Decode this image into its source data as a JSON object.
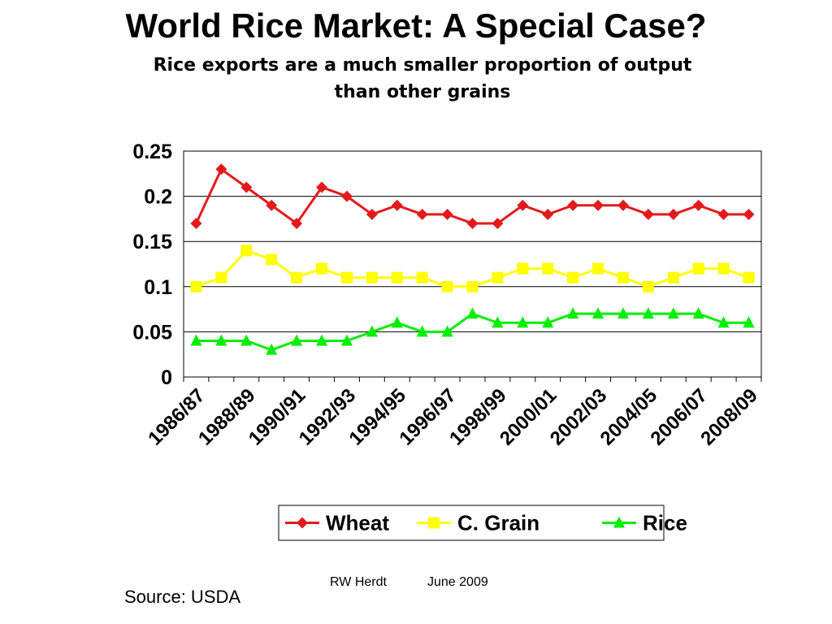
{
  "slide": {
    "title": "World Rice Market: A Special Case?",
    "subtitle": "Rice exports are a much smaller proportion of output than other grains",
    "source": "Source: USDA",
    "author": "RW Herdt",
    "date": "June 2009"
  },
  "chart_data": {
    "type": "line",
    "x": [
      "1986/87",
      "1987/88",
      "1988/89",
      "1989/90",
      "1990/91",
      "1991/92",
      "1992/93",
      "1993/94",
      "1994/95",
      "1995/96",
      "1996/97",
      "1997/98",
      "1998/99",
      "1999/00",
      "2000/01",
      "2001/02",
      "2002/03",
      "2003/04",
      "2004/05",
      "2005/06",
      "2006/07",
      "2007/08",
      "2008/09"
    ],
    "x_tick_labels": [
      "1986/87",
      "1988/89",
      "1990/91",
      "1992/93",
      "1994/95",
      "1996/97",
      "1998/99",
      "2000/01",
      "2002/03",
      "2004/05",
      "2006/07",
      "2008/09"
    ],
    "y_ticks": [
      "0",
      "0.05",
      "0.1",
      "0.15",
      "0.2",
      "0.25"
    ],
    "ylim": [
      0,
      0.25
    ],
    "grid": true,
    "legend_position": "bottom",
    "series": [
      {
        "name": "Wheat",
        "color": "#e31a1c",
        "marker": "diamond",
        "values": [
          0.17,
          0.23,
          0.21,
          0.19,
          0.17,
          0.21,
          0.2,
          0.18,
          0.19,
          0.18,
          0.18,
          0.17,
          0.17,
          0.19,
          0.18,
          0.19,
          0.19,
          0.19,
          0.18,
          0.18,
          0.19,
          0.18,
          0.18
        ]
      },
      {
        "name": "C. Grain",
        "color": "#ffff00",
        "marker": "square",
        "values": [
          0.1,
          0.11,
          0.14,
          0.13,
          0.11,
          0.12,
          0.11,
          0.11,
          0.11,
          0.11,
          0.1,
          0.1,
          0.11,
          0.12,
          0.12,
          0.11,
          0.12,
          0.11,
          0.1,
          0.11,
          0.12,
          0.12,
          0.11
        ]
      },
      {
        "name": "Rice",
        "color": "#00ee00",
        "marker": "triangle",
        "values": [
          0.04,
          0.04,
          0.04,
          0.03,
          0.04,
          0.04,
          0.04,
          0.05,
          0.06,
          0.05,
          0.05,
          0.07,
          0.06,
          0.06,
          0.06,
          0.07,
          0.07,
          0.07,
          0.07,
          0.07,
          0.07,
          0.06,
          0.06
        ]
      }
    ]
  }
}
